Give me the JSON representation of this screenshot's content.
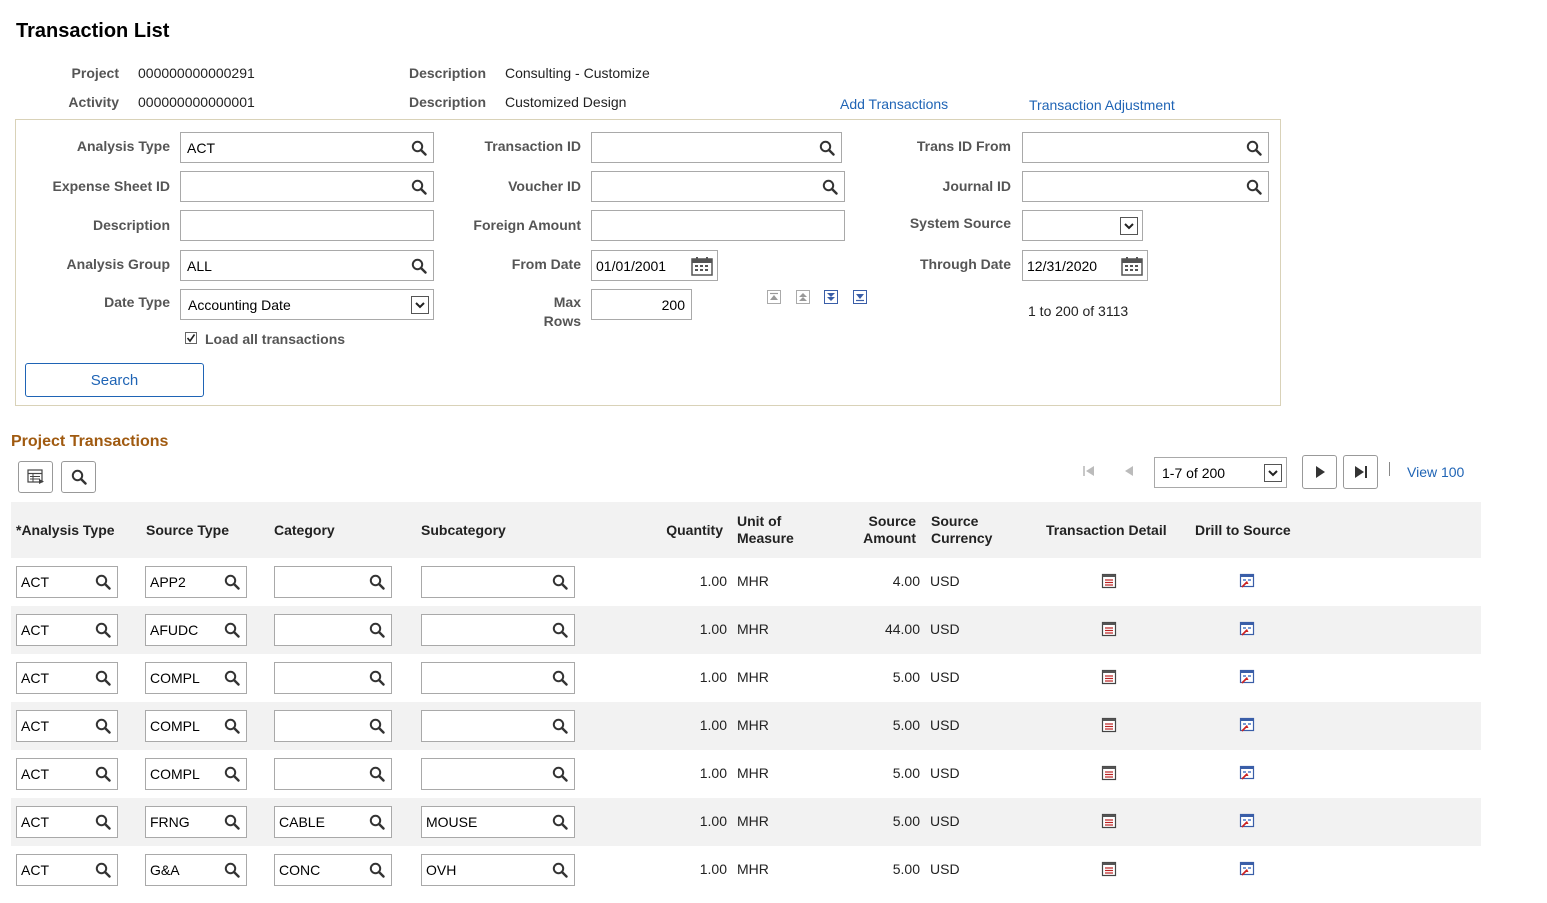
{
  "page_title": "Transaction List",
  "header": {
    "project_label": "Project",
    "project_value": "000000000000291",
    "project_desc_label": "Description",
    "project_desc_value": "Consulting - Customize",
    "activity_label": "Activity",
    "activity_value": "000000000000001",
    "activity_desc_label": "Description",
    "activity_desc_value": "Customized Design",
    "add_transactions_link": "Add Transactions",
    "transaction_adjustment_link": "Transaction Adjustment"
  },
  "criteria": {
    "analysis_type_label": "Analysis Type",
    "analysis_type_value": "ACT",
    "transaction_id_label": "Transaction ID",
    "transaction_id_value": "",
    "trans_id_from_label": "Trans ID From",
    "trans_id_from_value": "",
    "expense_sheet_id_label": "Expense Sheet ID",
    "expense_sheet_id_value": "",
    "voucher_id_label": "Voucher ID",
    "voucher_id_value": "",
    "journal_id_label": "Journal ID",
    "journal_id_value": "",
    "description_label": "Description",
    "description_value": "",
    "foreign_amount_label": "Foreign Amount",
    "foreign_amount_value": "",
    "system_source_label": "System Source",
    "system_source_value": "",
    "analysis_group_label": "Analysis Group",
    "analysis_group_value": "ALL",
    "from_date_label": "From Date",
    "from_date_value": "01/01/2001",
    "through_date_label": "Through Date",
    "through_date_value": "12/31/2020",
    "date_type_label": "Date Type",
    "date_type_value": "Accounting Date",
    "max_rows_label_1": "Max",
    "max_rows_label_2": "Rows",
    "max_rows_value": "200",
    "range_text": "1 to 200 of 3113",
    "load_all_label": "Load all transactions",
    "load_all_checked": true,
    "search_button": "Search"
  },
  "grid": {
    "section_title": "Project Transactions",
    "pager_text": "1-7 of 200",
    "view_link": "View 100",
    "columns": {
      "analysis_type": "*Analysis Type",
      "source_type": "Source Type",
      "category": "Category",
      "subcategory": "Subcategory",
      "quantity": "Quantity",
      "uom_1": "Unit of",
      "uom_2": "Measure",
      "source_amount_1": "Source",
      "source_amount_2": "Amount",
      "source_currency_1": "Source",
      "source_currency_2": "Currency",
      "transaction_detail": "Transaction Detail",
      "drill_to_source": "Drill to Source"
    },
    "rows": [
      {
        "analysis_type": "ACT",
        "source_type": "APP2",
        "category": "",
        "subcategory": "",
        "quantity": "1.00",
        "uom": "MHR",
        "amount": "4.00",
        "currency": "USD"
      },
      {
        "analysis_type": "ACT",
        "source_type": "AFUDC",
        "category": "",
        "subcategory": "",
        "quantity": "1.00",
        "uom": "MHR",
        "amount": "44.00",
        "currency": "USD"
      },
      {
        "analysis_type": "ACT",
        "source_type": "COMPL",
        "category": "",
        "subcategory": "",
        "quantity": "1.00",
        "uom": "MHR",
        "amount": "5.00",
        "currency": "USD"
      },
      {
        "analysis_type": "ACT",
        "source_type": "COMPL",
        "category": "",
        "subcategory": "",
        "quantity": "1.00",
        "uom": "MHR",
        "amount": "5.00",
        "currency": "USD"
      },
      {
        "analysis_type": "ACT",
        "source_type": "COMPL",
        "category": "",
        "subcategory": "",
        "quantity": "1.00",
        "uom": "MHR",
        "amount": "5.00",
        "currency": "USD"
      },
      {
        "analysis_type": "ACT",
        "source_type": "FRNG",
        "category": "CABLE",
        "subcategory": "MOUSE",
        "quantity": "1.00",
        "uom": "MHR",
        "amount": "5.00",
        "currency": "USD"
      },
      {
        "analysis_type": "ACT",
        "source_type": "G&A",
        "category": "CONC",
        "subcategory": "OVH",
        "quantity": "1.00",
        "uom": "MHR",
        "amount": "5.00",
        "currency": "USD"
      }
    ]
  },
  "colors": {
    "link": "#1f64b5",
    "section_title": "#a05a10",
    "panel_border": "#d9d2b8",
    "row_alt": "#f2f2f2"
  }
}
